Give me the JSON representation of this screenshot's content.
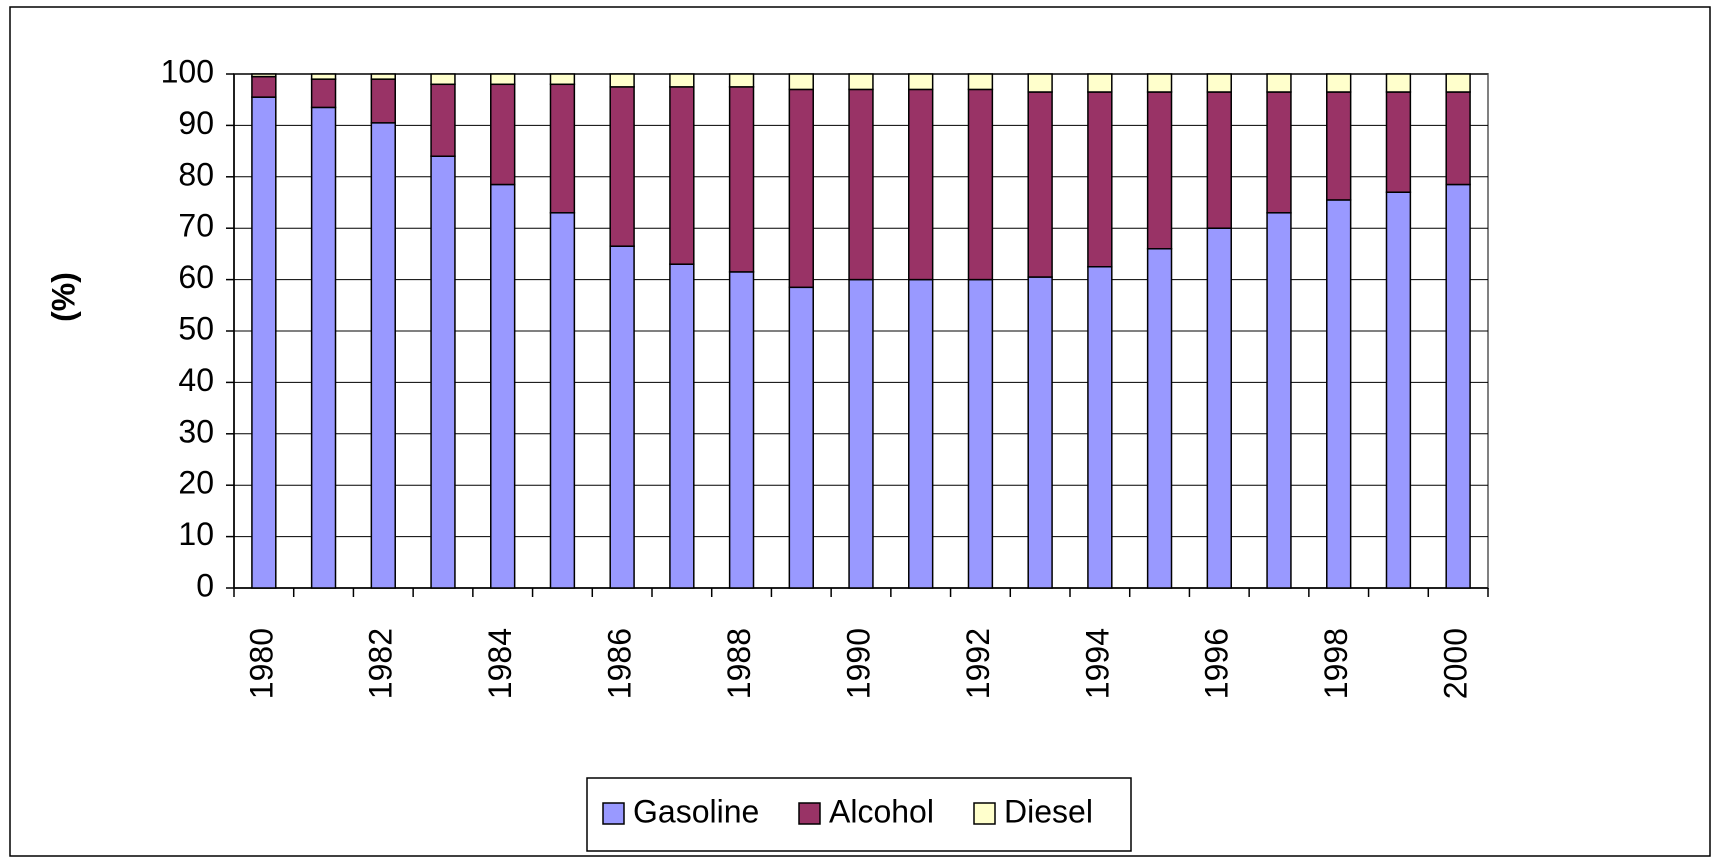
{
  "chart_data": {
    "type": "stacked_bar",
    "y_label": "(%)",
    "categories": [
      "1980",
      null,
      "1982",
      null,
      "1984",
      null,
      "1986",
      null,
      "1988",
      null,
      "1990",
      null,
      "1992",
      null,
      "1994",
      null,
      "1996",
      null,
      "1998",
      null,
      "2000"
    ],
    "series": [
      {
        "name": "Gasoline",
        "color": "#9999ff",
        "values": [
          95.5,
          93.5,
          90.5,
          84,
          78.5,
          73,
          66.5,
          63,
          61.5,
          58.5,
          60,
          60,
          60,
          60.5,
          62.5,
          66,
          70,
          73,
          75.5,
          77,
          78.5
        ]
      },
      {
        "name": "Alcohol",
        "color": "#993366",
        "values": [
          4,
          5.5,
          8.5,
          14,
          19.5,
          25,
          31,
          34.5,
          36,
          38.5,
          37,
          37,
          37,
          36,
          34,
          30.5,
          26.5,
          23.5,
          21,
          19.5,
          18
        ]
      },
      {
        "name": "Diesel",
        "color": "#ffffcc",
        "values": [
          0.5,
          1,
          1,
          2,
          2,
          2,
          2.5,
          2.5,
          2.5,
          3,
          3,
          3,
          3,
          3.5,
          3.5,
          3.5,
          3.5,
          3.5,
          3.5,
          3.5,
          3.5
        ]
      }
    ],
    "ylim": [
      0,
      100
    ],
    "yticks": [
      0,
      10,
      20,
      30,
      40,
      50,
      60,
      70,
      80,
      90,
      100
    ],
    "grid": true
  }
}
